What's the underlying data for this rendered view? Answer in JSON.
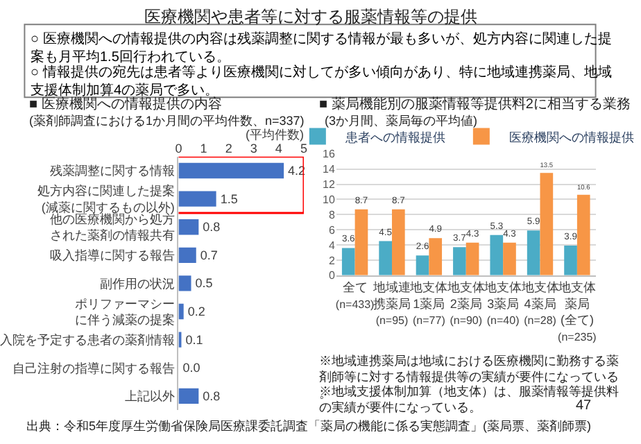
{
  "chart_data": [
    {
      "type": "bar",
      "orientation": "horizontal",
      "title": "■ 医療機関への情報提供の内容",
      "subtitle": "(薬剤師調査における1か月間の平均件数、n=337)",
      "xlabel": "(平均件数)",
      "categories": [
        "残薬調整に関する情報",
        "処方内容に関連した提案(減薬に関するもの以外)",
        "他の医療機関から処方された薬剤の情報共有",
        "吸入指導に関する報告",
        "副作用の状況",
        "ポリファーマシーに伴う減薬の提案",
        "入院を予定する患者の薬剤情報",
        "自己注射の指導に関する報告",
        "上記以外"
      ],
      "values": [
        4.2,
        1.5,
        0.8,
        0.7,
        0.5,
        0.2,
        0.1,
        0.0,
        0.8
      ],
      "value_labels": [
        "4.2",
        "1.5",
        "0.8",
        "0.7",
        "0.5",
        "0.2",
        "0.1",
        "0.0",
        "0.8"
      ],
      "color": "#4472c4",
      "xlim": [
        0,
        5
      ],
      "xticks": [
        0,
        1,
        2,
        3,
        4,
        5
      ],
      "grid": false,
      "annotations": [
        "医療機関や患者等に対する服薬情報等の提供",
        "○ 医療機関への情報提供の内容は残薬調整に関する情報が最も多いが、処方内容に関連した提案も月平均1.5回行われている。",
        "○ 情報提供の宛先は患者等より医療機関に対してが多い傾向があり、特に地域連携薬局、地域支援体制加算4の薬局で多い。",
        "出典：令和5年度厚生労働省保険局医療課委託調査「薬局の機能に係る実態調査」(薬局票、薬剤師票)",
        "47"
      ]
    },
    {
      "type": "bar",
      "title": "■ 薬局機能別の服薬情報等提供料2に相当する業務",
      "subtitle": "(3か月間、薬局毎の平均値)",
      "categories": [
        "全て(n=433)",
        "地域連携薬局(n=95)",
        "地支体1薬局(n=77)",
        "地支体2薬局(n=90)",
        "地支体3薬局(n=40)",
        "地支体4薬局(n=28)",
        "地支体薬局(全て)(n=235)"
      ],
      "series": [
        {
          "name": "患者への情報提供",
          "color": "#4bacc6",
          "values": [
            3.6,
            4.5,
            2.6,
            3.7,
            5.3,
            5.9,
            3.9
          ]
        },
        {
          "name": "医療機関への情報提供",
          "color": "#f79646",
          "values": [
            8.7,
            8.7,
            4.9,
            4.3,
            4.3,
            13.5,
            10.6
          ]
        }
      ],
      "ylim": [
        0,
        16
      ],
      "yticks": [
        0,
        2,
        4,
        6,
        8,
        10,
        12,
        14,
        16
      ],
      "grid": "y",
      "legend": "top",
      "data_labels": true,
      "annotations": [
        "※地域連携薬局は地域における医療機関に勤務する薬剤師等に対する情報提供等の実績が要件になっている。",
        "※地域支援体制加算（地支体）は、服薬情報等提供料の実績が要件になっている。"
      ]
    }
  ]
}
